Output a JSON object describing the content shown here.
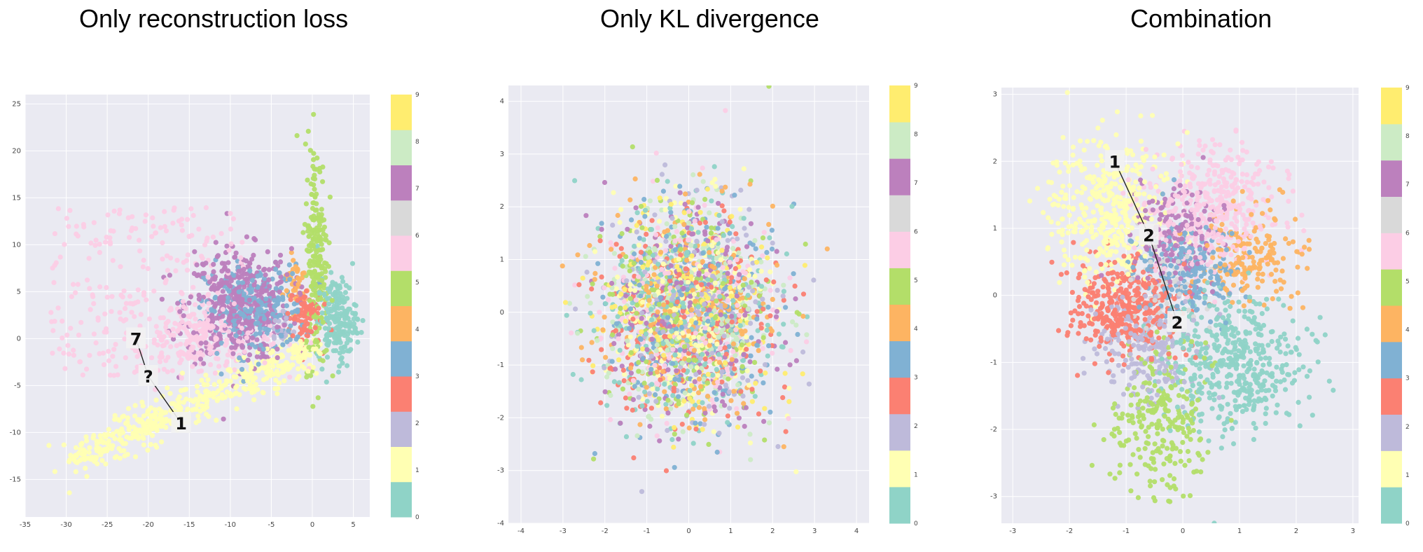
{
  "colors": [
    "#8fd3c7",
    "#ffffb3",
    "#bebada",
    "#fb8072",
    "#80b1d3",
    "#fdb462",
    "#b3de69",
    "#fccde5",
    "#d9d9d9",
    "#bc80bd",
    "#ccebc5",
    "#ffed6f"
  ],
  "chart_data": [
    {
      "type": "scatter",
      "title": "Only reconstruction loss",
      "xlabel": "",
      "ylabel": "",
      "xlim": [
        -35,
        7
      ],
      "ylim": [
        -19,
        26
      ],
      "xticks": [
        -35,
        -30,
        -25,
        -20,
        -15,
        -10,
        -5,
        0,
        5
      ],
      "yticks": [
        -15,
        -10,
        -5,
        0,
        5,
        10,
        15,
        20,
        25
      ],
      "grid": true,
      "colorbar": {
        "ticks": [
          0,
          1,
          2,
          3,
          4,
          5,
          6,
          7,
          8,
          9
        ],
        "palette": "Set3"
      },
      "clusters": [
        {
          "class": 7,
          "shape": "box",
          "x": [
            -32,
            -8
          ],
          "y": [
            -4,
            14
          ],
          "n": 260
        },
        {
          "class": 7,
          "shape": "gauss",
          "cx": -14,
          "cy": 0,
          "sx": 5,
          "sy": 1.6,
          "n": 220
        },
        {
          "class": 9,
          "shape": "gauss",
          "cx": -9,
          "cy": 3.5,
          "sx": 3.2,
          "sy": 3,
          "n": 450
        },
        {
          "class": 4,
          "shape": "gauss",
          "cx": -7,
          "cy": 3,
          "sx": 3,
          "sy": 2.4,
          "n": 260
        },
        {
          "class": 1,
          "shape": "line",
          "x0": -29,
          "y0": -13,
          "x1": 0,
          "y1": -1,
          "spread": 1.6,
          "n": 520
        },
        {
          "class": 6,
          "shape": "gauss",
          "cx": 0.5,
          "cy": 9,
          "sx": 0.7,
          "sy": 6,
          "n": 220
        },
        {
          "class": 0,
          "shape": "gauss",
          "cx": 3,
          "cy": 2,
          "sx": 1.2,
          "sy": 2.2,
          "n": 200
        },
        {
          "class": 3,
          "shape": "gauss",
          "cx": -1,
          "cy": 2.5,
          "sx": 1,
          "sy": 1.6,
          "n": 80
        },
        {
          "class": 5,
          "shape": "gauss",
          "cx": -2,
          "cy": 6,
          "sx": 0.8,
          "sy": 1.5,
          "n": 40
        },
        {
          "class": 2,
          "shape": "gauss",
          "cx": -4,
          "cy": 1,
          "sx": 1,
          "sy": 1,
          "n": 25
        }
      ],
      "annotations": [
        {
          "text": "7",
          "x": -21.5,
          "y": 0
        },
        {
          "text": "?",
          "x": -20,
          "y": -4
        },
        {
          "text": "1",
          "x": -16,
          "y": -9
        }
      ]
    },
    {
      "type": "scatter",
      "title": "Only KL divergence",
      "xlabel": "",
      "ylabel": "",
      "xlim": [
        -4.3,
        4.3
      ],
      "ylim": [
        -4,
        4.3
      ],
      "xticks": [
        -4,
        -3,
        -2,
        -1,
        0,
        1,
        2,
        3,
        4
      ],
      "yticks": [
        -4,
        -3,
        -2,
        -1,
        0,
        1,
        2,
        3,
        4
      ],
      "grid": true,
      "colorbar": {
        "ticks": [
          0,
          1,
          2,
          3,
          4,
          5,
          6,
          7,
          8,
          9
        ],
        "palette": "Set3"
      },
      "clusters": [
        {
          "class": "all",
          "shape": "gauss",
          "cx": 0,
          "cy": 0,
          "sx": 1,
          "sy": 1,
          "n": 2600
        }
      ],
      "annotations": []
    },
    {
      "type": "scatter",
      "title": "Combination",
      "xlabel": "",
      "ylabel": "",
      "xlim": [
        -3.2,
        3.1
      ],
      "ylim": [
        -3.4,
        3.1
      ],
      "xticks": [
        -3,
        -2,
        -1,
        0,
        1,
        2,
        3
      ],
      "yticks": [
        -3,
        -2,
        -1,
        0,
        1,
        2,
        3
      ],
      "grid": true,
      "colorbar": {
        "ticks": [
          0,
          1,
          2,
          3,
          4,
          5,
          6,
          7,
          8,
          9
        ],
        "palette": "Set3"
      },
      "clusters": [
        {
          "class": 1,
          "shape": "gauss",
          "cx": -1.3,
          "cy": 1.3,
          "sx": 0.55,
          "sy": 0.55,
          "n": 420
        },
        {
          "class": 7,
          "shape": "gauss",
          "cx": 0.5,
          "cy": 1.3,
          "sx": 0.55,
          "sy": 0.5,
          "n": 420
        },
        {
          "class": 9,
          "shape": "gauss",
          "cx": -0.2,
          "cy": 0.9,
          "sx": 0.4,
          "sy": 0.35,
          "n": 180
        },
        {
          "class": 4,
          "shape": "gauss",
          "cx": 0.1,
          "cy": 0.4,
          "sx": 0.45,
          "sy": 0.35,
          "n": 200
        },
        {
          "class": 5,
          "shape": "gauss",
          "cx": 1.2,
          "cy": 0.6,
          "sx": 0.45,
          "sy": 0.35,
          "n": 180
        },
        {
          "class": 3,
          "shape": "gauss",
          "cx": -1.0,
          "cy": -0.2,
          "sx": 0.45,
          "sy": 0.35,
          "n": 380
        },
        {
          "class": 2,
          "shape": "gauss",
          "cx": -0.6,
          "cy": -0.8,
          "sx": 0.45,
          "sy": 0.4,
          "n": 200
        },
        {
          "class": 0,
          "shape": "gauss",
          "cx": 0.9,
          "cy": -1.0,
          "sx": 0.6,
          "sy": 0.5,
          "n": 480
        },
        {
          "class": 6,
          "shape": "gauss",
          "cx": -0.4,
          "cy": -1.9,
          "sx": 0.4,
          "sy": 0.55,
          "n": 240
        },
        {
          "class": 8,
          "shape": "gauss",
          "cx": -0.3,
          "cy": 0.2,
          "sx": 0.4,
          "sy": 0.35,
          "n": 60
        }
      ],
      "annotations": [
        {
          "text": "1",
          "x": -1.2,
          "y": 2.0
        },
        {
          "text": "2",
          "x": -0.6,
          "y": 0.9
        },
        {
          "text": "2",
          "x": -0.1,
          "y": -0.4
        }
      ]
    }
  ]
}
